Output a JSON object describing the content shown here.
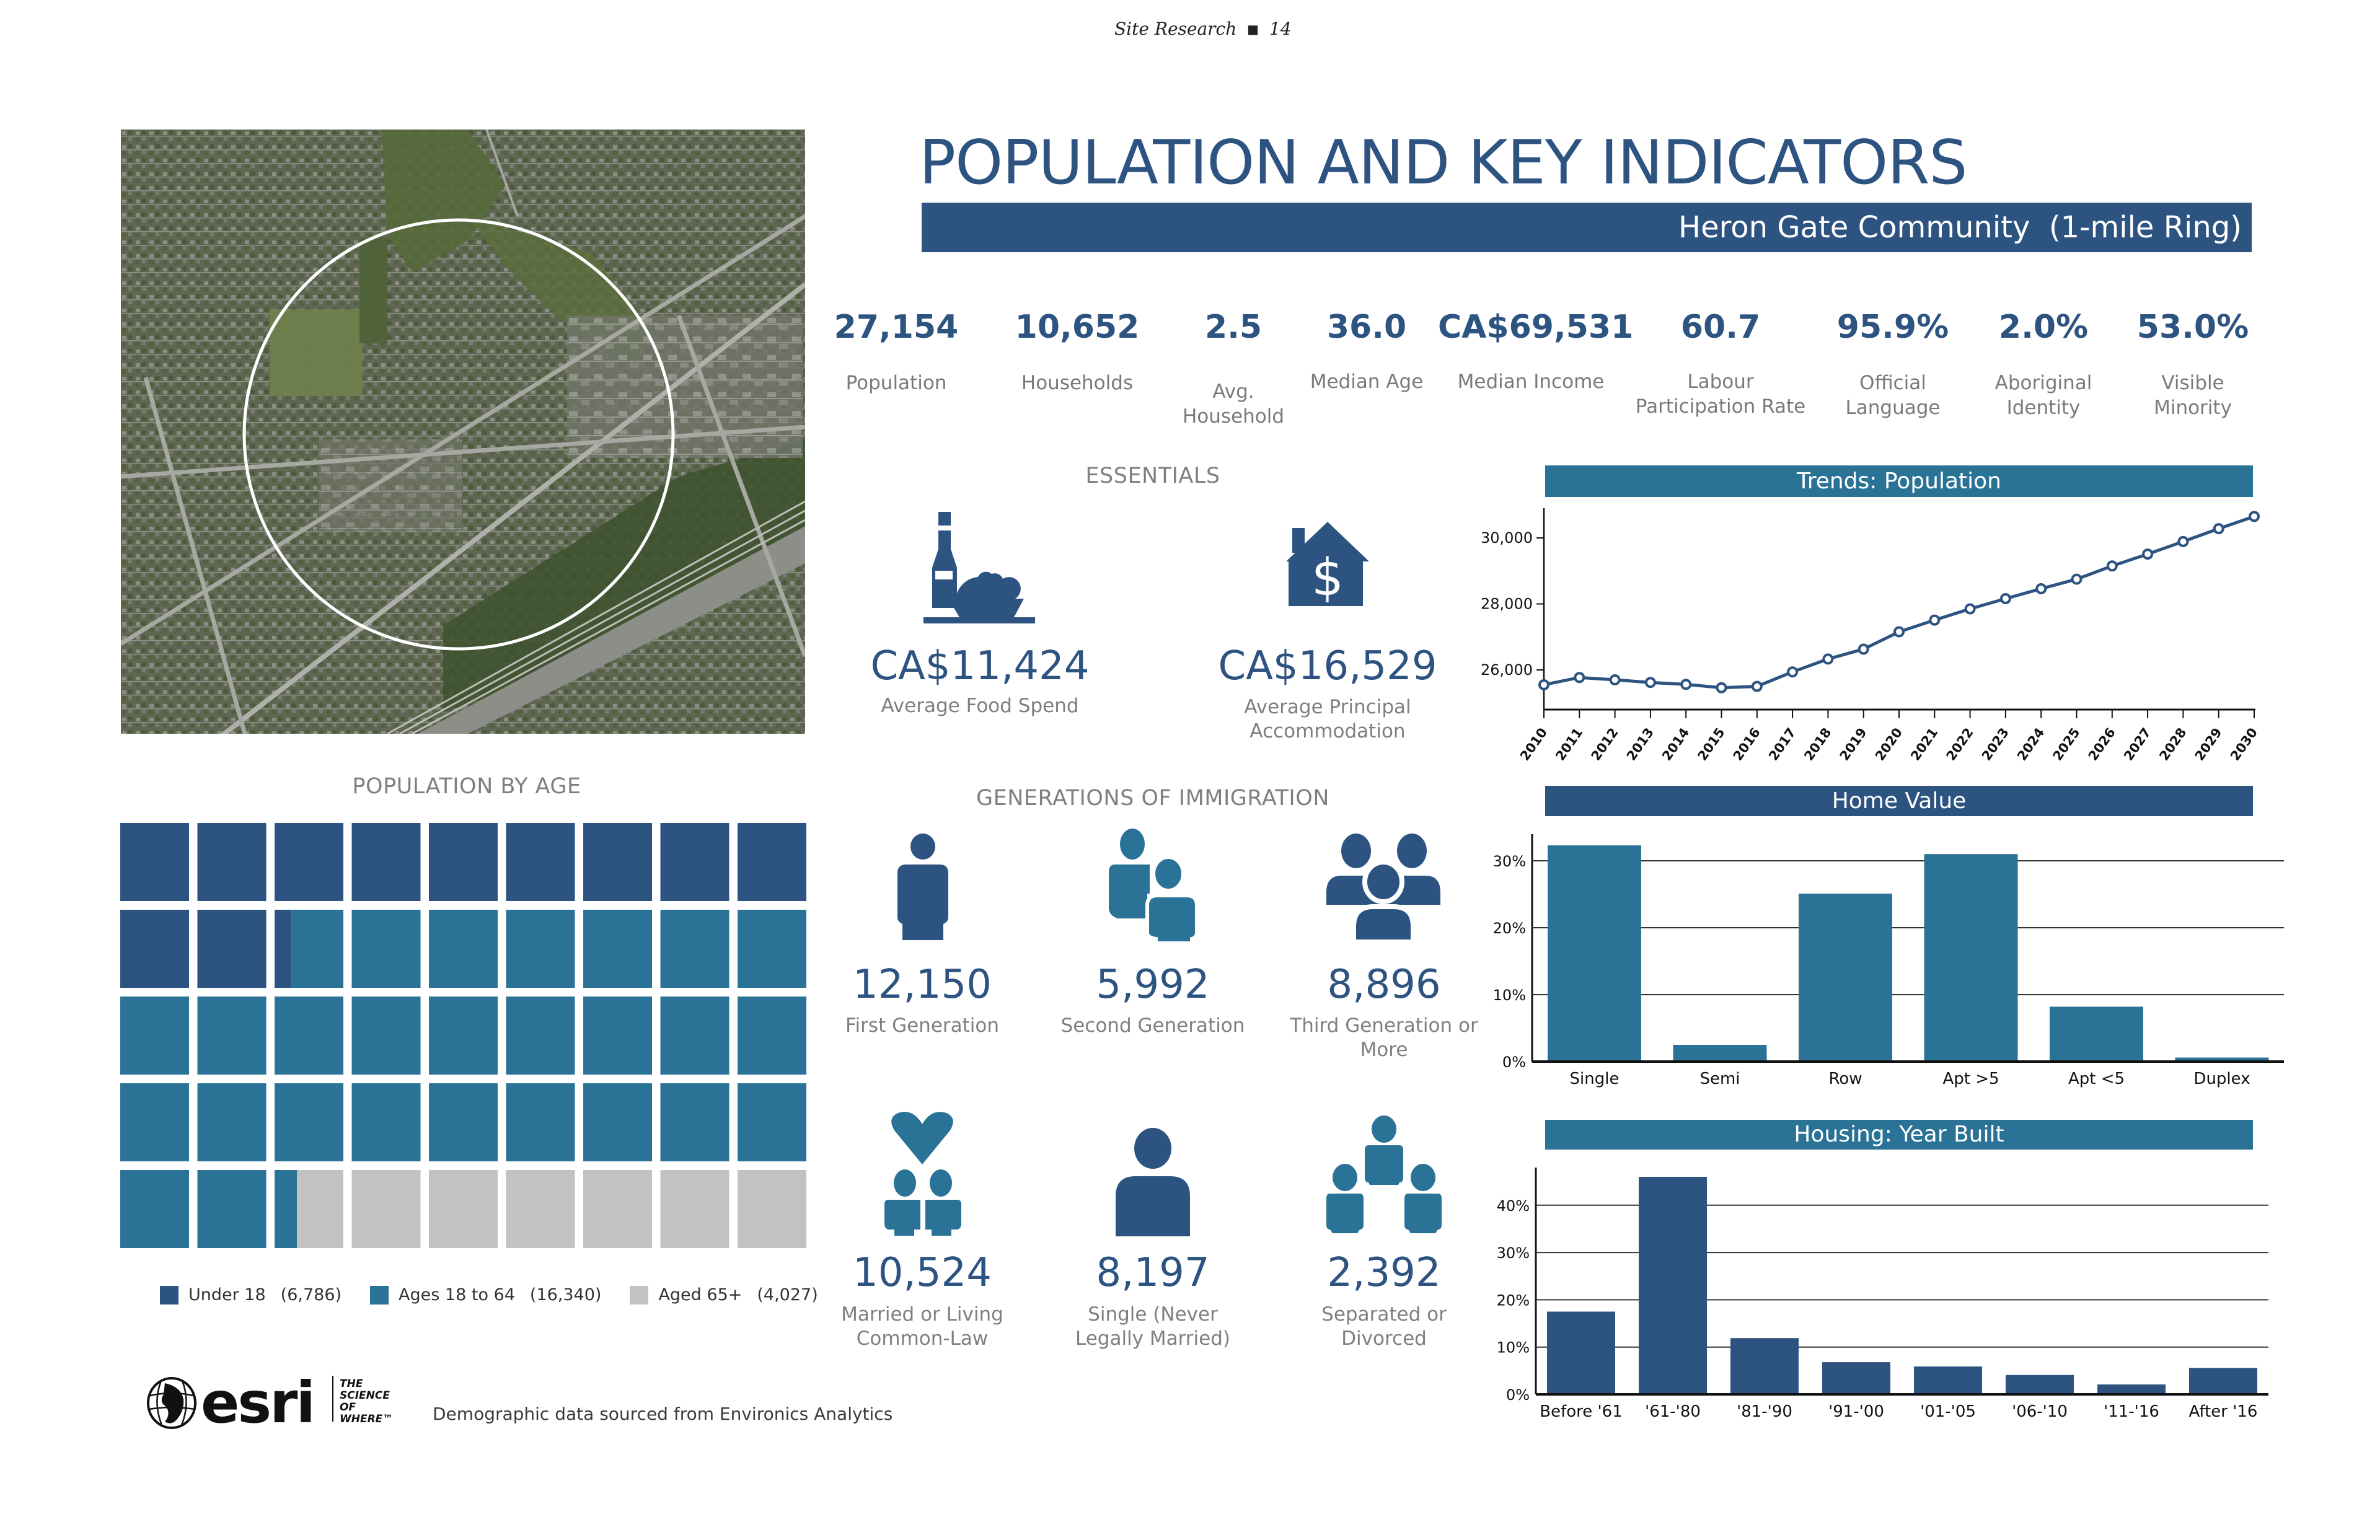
{
  "header": {
    "section": "Site Research",
    "separator": "■",
    "page": "14"
  },
  "title": "POPULATION AND KEY INDICATORS",
  "subtitle": "Heron Gate Community  (1-mile Ring)",
  "colors": {
    "primary": "#2d5381",
    "secondary": "#2a7396",
    "neutral": "#c2c2c2"
  },
  "kpis": [
    {
      "value": "27,154",
      "label": "Population"
    },
    {
      "value": "10,652",
      "label": "Households"
    },
    {
      "value": "2.5",
      "label": "Avg. Household"
    },
    {
      "value": "36.0",
      "label": "Median Age"
    },
    {
      "value": "CA$69,531",
      "label": "Median Income"
    },
    {
      "value": "60.7",
      "label": "Labour Participation Rate"
    },
    {
      "value": "95.9%",
      "label": "Official Language"
    },
    {
      "value": "2.0%",
      "label": "Aboriginal Identity"
    },
    {
      "value": "53.0%",
      "label": "Visible Minority"
    }
  ],
  "essentials": {
    "title": "ESSENTIALS",
    "items": [
      {
        "icon": "food-icon",
        "value": "CA$11,424",
        "label": "Average Food Spend"
      },
      {
        "icon": "house-dollar-icon",
        "value": "CA$16,529",
        "label": "Average Principal Accommodation"
      }
    ]
  },
  "immigration": {
    "title": "GENERATIONS OF IMMIGRATION",
    "items": [
      {
        "icon": "person-icon",
        "value": "12,150",
        "label": "First Generation"
      },
      {
        "icon": "two-people-icon",
        "value": "5,992",
        "label": "Second Generation"
      },
      {
        "icon": "group-icon",
        "value": "8,896",
        "label": "Third Generation or More"
      }
    ]
  },
  "marital": {
    "items": [
      {
        "icon": "couple-heart-icon",
        "value": "10,524",
        "label": "Married or Living Common-Law"
      },
      {
        "icon": "single-person-icon",
        "value": "8,197",
        "label": "Single (Never Legally Married)"
      },
      {
        "icon": "separated-people-icon",
        "value": "2,392",
        "label": "Separated or Divorced"
      }
    ]
  },
  "map": {
    "description": "Aerial imagery with 1-mile ring",
    "ring": "1-mile"
  },
  "footer": {
    "logo_word": "esri",
    "logo_tagline": [
      "THE",
      "SCIENCE",
      "OF",
      "WHERE™"
    ],
    "source_note": "Demographic data sourced from Environics Analytics"
  },
  "chart_data": [
    {
      "type": "line",
      "title": "Trends: Population",
      "x": [
        "2010",
        "2011",
        "2012",
        "2013",
        "2014",
        "2015",
        "2016",
        "2017",
        "2018",
        "2019",
        "2020",
        "2021",
        "2022",
        "2023",
        "2024",
        "2025",
        "2026",
        "2027",
        "2028",
        "2029",
        "2030"
      ],
      "values": [
        25550,
        25770,
        25700,
        25620,
        25560,
        25460,
        25500,
        25940,
        26330,
        26630,
        27154,
        27510,
        27850,
        28160,
        28460,
        28750,
        29150,
        29510,
        29890,
        30280,
        30650
      ],
      "yticks": [
        "26,000",
        "28,000",
        "30,000"
      ],
      "ytick_values": [
        26000,
        28000,
        30000
      ],
      "ylim": [
        24700,
        30800
      ],
      "xlabel": "",
      "ylabel": "",
      "grid": false
    },
    {
      "type": "bar",
      "title": "Home Value",
      "categories": [
        "Single",
        "Semi",
        "Row",
        "Apt >5",
        "Apt <5",
        "Duplex"
      ],
      "values": [
        32.3,
        2.5,
        25.1,
        31.0,
        8.2,
        0.6
      ],
      "yticks": [
        "0%",
        "10%",
        "20%",
        "30%"
      ],
      "ytick_values": [
        0,
        10,
        20,
        30
      ],
      "ylim": [
        0,
        34
      ],
      "unit": "%",
      "grid": true
    },
    {
      "type": "bar",
      "title": "Housing: Year Built",
      "categories": [
        "Before '61",
        "'61-'80",
        "'81-'90",
        "'91-'00",
        "'01-'05",
        "'06-'10",
        "'11-'16",
        "After '16"
      ],
      "values": [
        17.5,
        46.0,
        11.9,
        6.8,
        5.9,
        4.1,
        2.1,
        5.6
      ],
      "yticks": [
        "0%",
        "10%",
        "20%",
        "30%",
        "40%"
      ],
      "ytick_values": [
        0,
        10,
        20,
        30,
        40
      ],
      "ylim": [
        0,
        48
      ],
      "unit": "%",
      "grid": true
    },
    {
      "type": "waffle",
      "title": "POPULATION BY AGE",
      "grid_cols": 9,
      "grid_rows": 5,
      "series": [
        {
          "name": "Under 18",
          "count": "(6,786)",
          "value": 6786,
          "color": "#2d5381"
        },
        {
          "name": "Ages 18 to 64",
          "count": "(16,340)",
          "value": 16340,
          "color": "#2a7396"
        },
        {
          "name": "Aged 65+",
          "count": "(4,027)",
          "value": 4027,
          "color": "#c2c2c2"
        }
      ]
    }
  ]
}
